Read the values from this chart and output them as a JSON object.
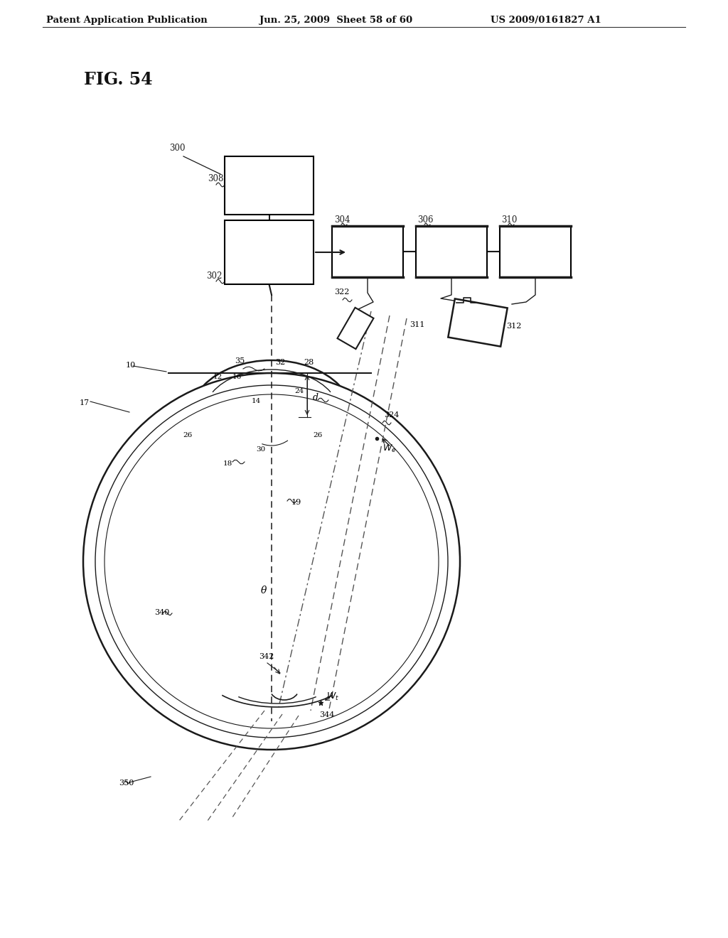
{
  "header_left": "Patent Application Publication",
  "header_center": "Jun. 25, 2009  Sheet 58 of 60",
  "header_right": "US 2009/0161827 A1",
  "fig_label": "FIG. 54",
  "bg_color": "#ffffff",
  "line_color": "#1a1a1a"
}
